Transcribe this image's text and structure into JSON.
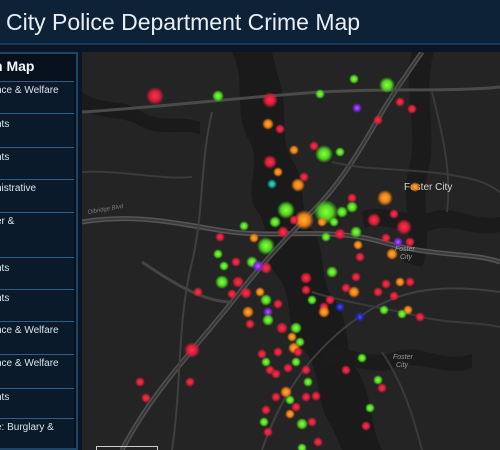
{
  "header": {
    "title": "r City Police Department Crime Map"
  },
  "sidebar": {
    "title": "n Map",
    "items": [
      {
        "label": "nce & Welfare"
      },
      {
        "label": "nts"
      },
      {
        "label": "nts"
      },
      {
        "label": "nistrative"
      },
      {
        "label": "er &\n"
      },
      {
        "label": "nts"
      },
      {
        "label": "nts"
      },
      {
        "label": "nce & Welfare"
      },
      {
        "label": "nce & Welfare\n:"
      },
      {
        "label": "nts"
      },
      {
        "label": "e: Burglary &"
      }
    ]
  },
  "map": {
    "labels": [
      {
        "text": "Foster City"
      },
      {
        "text": "Foster\nCity"
      },
      {
        "text": "Foster\nCity"
      },
      {
        "text": "Olbridge Blvd"
      }
    ],
    "colors": {
      "red": "#e0243c",
      "green": "#59e02a",
      "orange": "#f08a1a",
      "purple": "#8a2be2",
      "teal": "#19b3a8",
      "navy": "#2b2bd0"
    }
  }
}
